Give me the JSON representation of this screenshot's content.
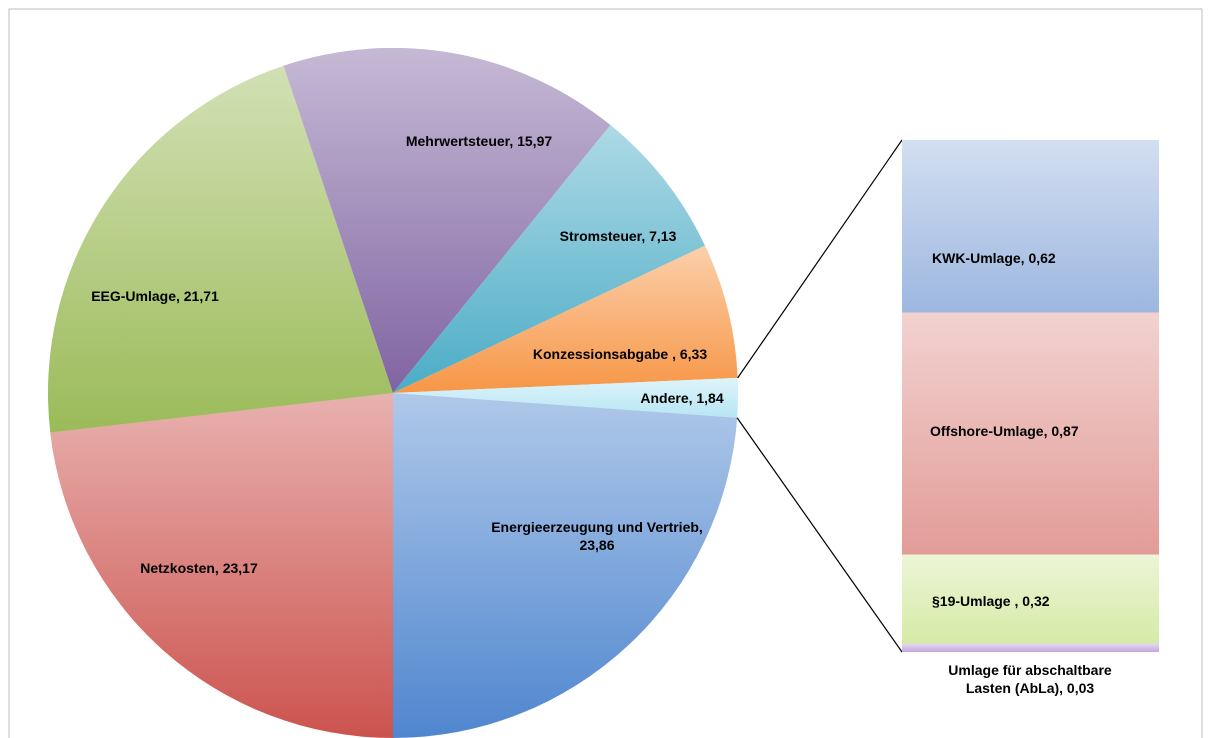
{
  "chart_data": [
    {
      "type": "pie",
      "values": [
        23.86,
        23.17,
        21.71,
        15.97,
        7.13,
        6.33,
        1.84
      ],
      "value_labels": [
        "Energieerzeugung und Vertrieb, 23,86",
        "Netzkosten, 23,17",
        "EEG-Umlage, 21,71",
        "Mehrwertsteuer, 15,97",
        "Stromsteuer, 7,13",
        "Konzessionsabgabe , 6,33",
        "Andere, 1,84"
      ],
      "colors": [
        "#4f86cf",
        "#cc534e",
        "#9bbb59",
        "#8064a2",
        "#4bacc6",
        "#f79646",
        "#b7e6f4"
      ]
    },
    {
      "type": "bar",
      "values": [
        0.62,
        0.87,
        0.32,
        0.03
      ],
      "value_labels": [
        "KWK-Umlage, 0,62",
        "Offshore-Umlage, 0,87",
        "§19-Umlage , 0,32",
        "Umlage für abschaltbare Lasten (AbLa), 0,03"
      ],
      "colors": [
        "#9db7e0",
        "#e29c98",
        "#d6eaa6",
        "#c3a8dc"
      ]
    }
  ]
}
